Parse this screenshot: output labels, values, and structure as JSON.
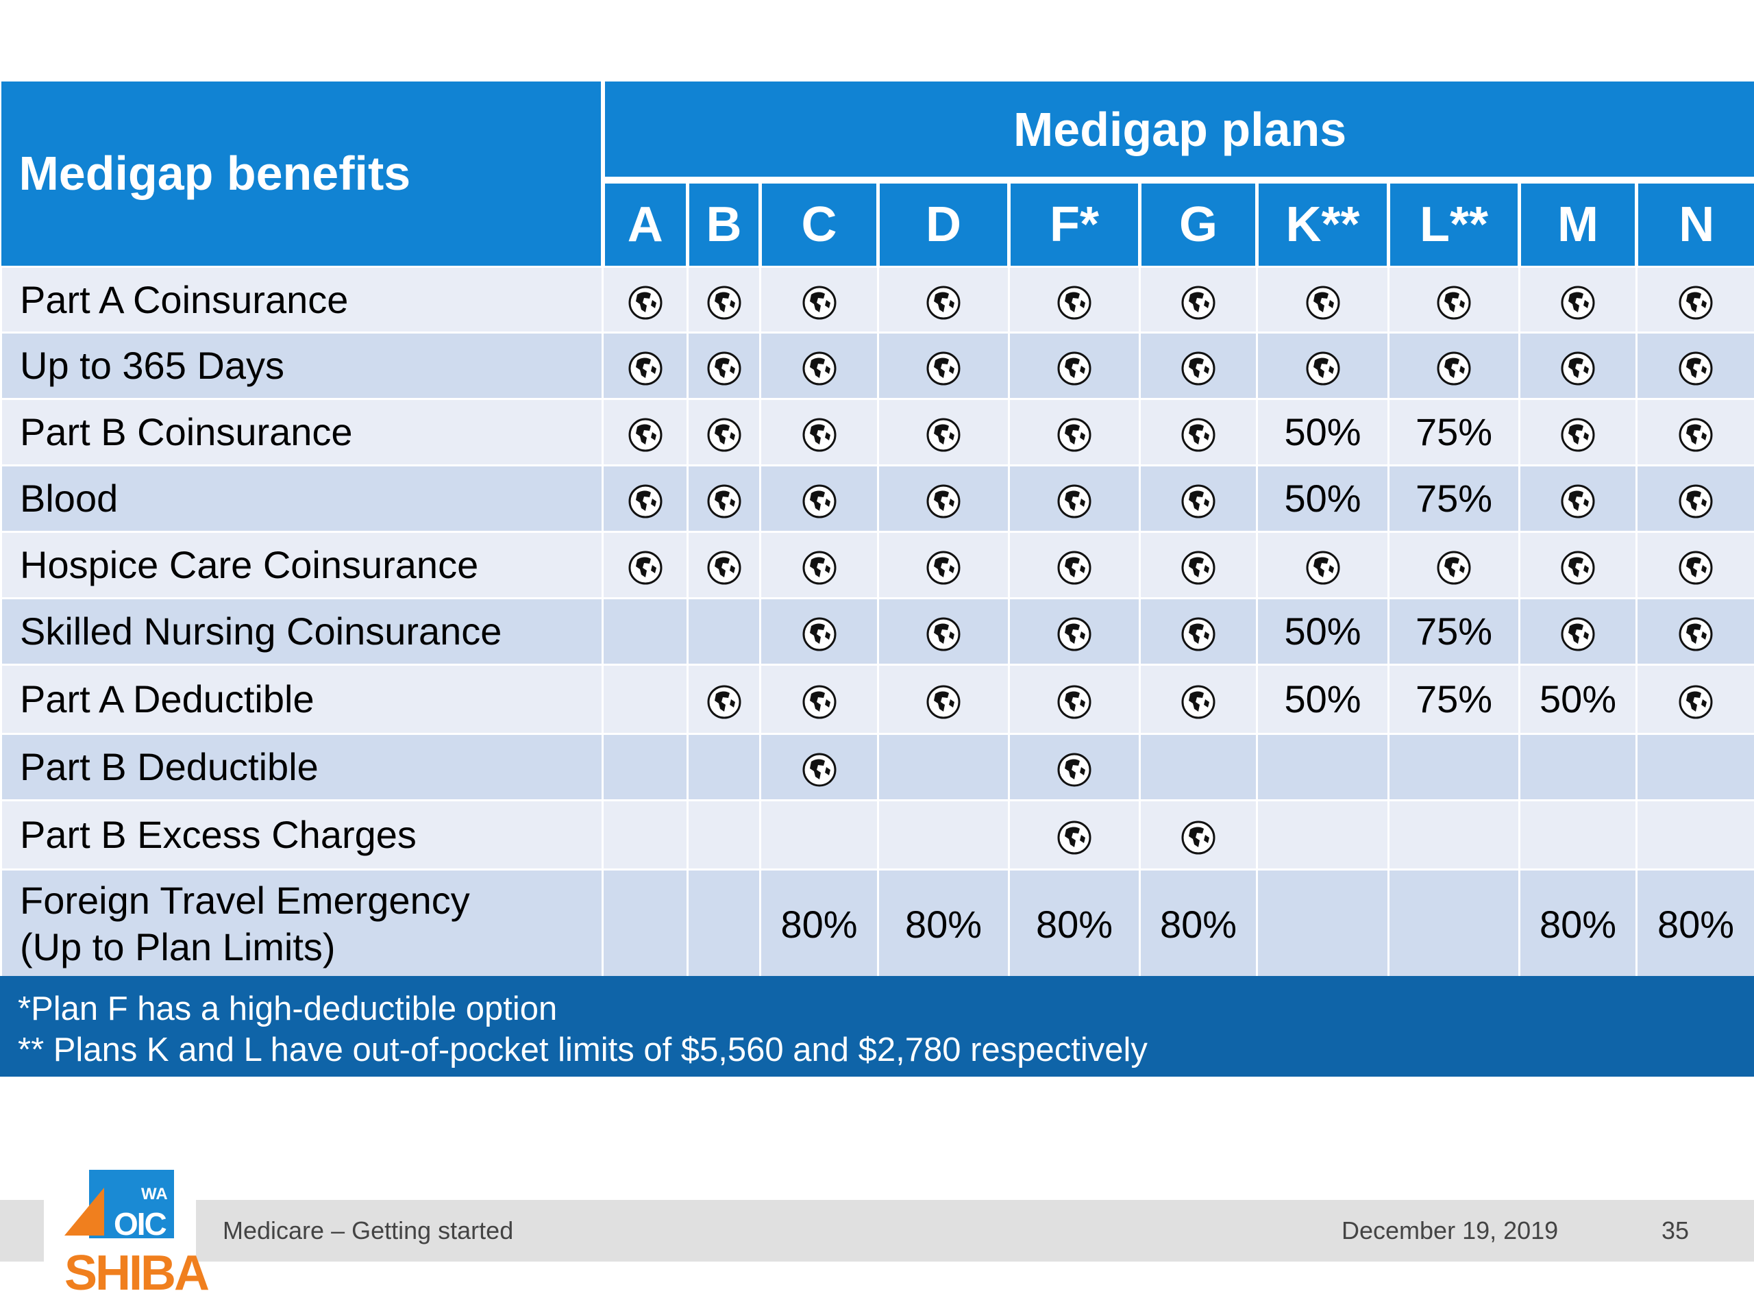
{
  "table": {
    "benefits_header": "Medigap benefits",
    "plans_header": "Medigap plans",
    "plans": [
      "A",
      "B",
      "C",
      "D",
      "F*",
      "G",
      "K**",
      "L**",
      "M",
      "N"
    ],
    "rows": [
      {
        "benefit": "Part A Coinsurance",
        "cells": [
          "check",
          "check",
          "check",
          "check",
          "check",
          "check",
          "check",
          "check",
          "check",
          "check"
        ]
      },
      {
        "benefit": "Up to 365 Days",
        "cells": [
          "check",
          "check",
          "check",
          "check",
          "check",
          "check",
          "check",
          "check",
          "check",
          "check"
        ]
      },
      {
        "benefit": "Part B Coinsurance",
        "cells": [
          "check",
          "check",
          "check",
          "check",
          "check",
          "check",
          "50%",
          "75%",
          "check",
          "check"
        ]
      },
      {
        "benefit": "Blood",
        "cells": [
          "check",
          "check",
          "check",
          "check",
          "check",
          "check",
          "50%",
          "75%",
          "check",
          "check"
        ]
      },
      {
        "benefit": "Hospice Care Coinsurance",
        "cells": [
          "check",
          "check",
          "check",
          "check",
          "check",
          "check",
          "check",
          "check",
          "check",
          "check"
        ]
      },
      {
        "benefit": "Skilled Nursing Coinsurance",
        "cells": [
          "",
          "",
          "check",
          "check",
          "check",
          "check",
          "50%",
          "75%",
          "check",
          "check"
        ]
      },
      {
        "benefit": "Part A Deductible",
        "cells": [
          "",
          "check",
          "check",
          "check",
          "check",
          "check",
          "50%",
          "75%",
          "50%",
          "check"
        ]
      },
      {
        "benefit": "Part B Deductible",
        "cells": [
          "",
          "",
          "check",
          "",
          "check",
          "",
          "",
          "",
          "",
          ""
        ]
      },
      {
        "benefit": "Part B Excess Charges",
        "cells": [
          "",
          "",
          "",
          "",
          "check",
          "check",
          "",
          "",
          "",
          ""
        ]
      },
      {
        "benefit": "Foreign Travel Emergency\n(Up to Plan Limits)",
        "benefit_line1": "Foreign Travel Emergency",
        "benefit_line2": "(Up to Plan Limits)",
        "cells": [
          "",
          "",
          "80%",
          "80%",
          "80%",
          "80%",
          "",
          "",
          "80%",
          "80%"
        ]
      }
    ],
    "check_icon": "globe-check-icon",
    "colors": {
      "header_blue": "#1183d3",
      "footnote_blue": "#0f64a8",
      "row_light": "#e9edf6",
      "row_dark": "#cfdbee"
    }
  },
  "footnotes": [
    "*Plan F has a high-deductible option",
    "** Plans K and L have out-of-pocket limits of $5,560 and $2,780 respectively"
  ],
  "footer": {
    "title": "Medicare – Getting started",
    "date": "December 19, 2019",
    "page": "35"
  },
  "logo": {
    "top_text": "WA",
    "mid_text": "OIC",
    "bottom_text": "SHIBA"
  }
}
